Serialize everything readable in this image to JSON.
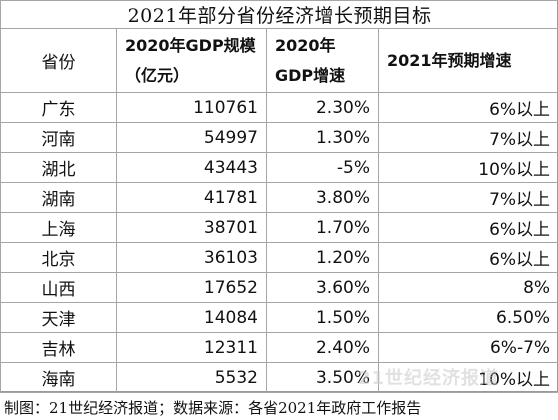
{
  "title": "2021年部分省份经济增长预期目标",
  "headers": {
    "province": "省份",
    "gdp_2020": "2020年GDP规模（亿元）",
    "growth_2020": "2020年GDP增速",
    "target_2021": "2021年预期增速"
  },
  "rows": [
    {
      "province": "广东",
      "gdp": "110761",
      "growth": "2.30%",
      "target": "6%以上"
    },
    {
      "province": "河南",
      "gdp": "54997",
      "growth": "1.30%",
      "target": "7%以上"
    },
    {
      "province": "湖北",
      "gdp": "43443",
      "growth": "-5%",
      "target": "10%以上"
    },
    {
      "province": "湖南",
      "gdp": "41781",
      "growth": "3.80%",
      "target": "7%以上"
    },
    {
      "province": "上海",
      "gdp": "38701",
      "growth": "1.70%",
      "target": "6%以上"
    },
    {
      "province": "北京",
      "gdp": "36103",
      "growth": "1.20%",
      "target": "6%以上"
    },
    {
      "province": "山西",
      "gdp": "17652",
      "growth": "3.60%",
      "target": "8%"
    },
    {
      "province": "天津",
      "gdp": "14084",
      "growth": "1.50%",
      "target": "6.50%"
    },
    {
      "province": "吉林",
      "gdp": "12311",
      "growth": "2.40%",
      "target": "6%-7%"
    },
    {
      "province": "海南",
      "gdp": "5532",
      "growth": "3.50%",
      "target": "10%以上"
    }
  ],
  "caption": "制图：21世纪经济报道；数据来源：各省2021年政府工作报告",
  "watermark": "21世纪经济报道"
}
